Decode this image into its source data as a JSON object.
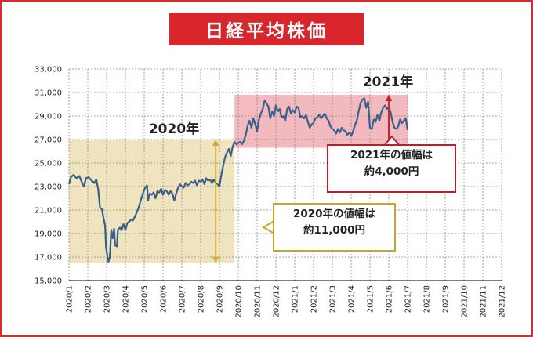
{
  "title": "日経平均株価",
  "chart_data": {
    "type": "line",
    "title": "日経平均株価",
    "ylim": [
      15000,
      33000
    ],
    "yticks": [
      "33,000",
      "31,000",
      "29,000",
      "27,000",
      "25,000",
      "23,000",
      "21,000",
      "19,000",
      "17,000",
      "15,000"
    ],
    "ytick_values": [
      33000,
      31000,
      29000,
      27000,
      25000,
      23000,
      21000,
      19000,
      17000,
      15000
    ],
    "xticks": [
      "2020/1",
      "2020/2",
      "2020/3",
      "2020/4",
      "2020/5",
      "2020/6",
      "2020/7",
      "2020/8",
      "2020/9",
      "2020/10",
      "2020/11",
      "2020/12",
      "2021/1",
      "2021/2",
      "2021/3",
      "2021/4",
      "2021/5",
      "2021/6",
      "2021/7",
      "2021/8",
      "2021/9",
      "2021/10",
      "2021/11",
      "2021/12"
    ],
    "grid": true,
    "line_color": "#3a5f8c",
    "series": [
      {
        "values": [
          [
            0.0,
            23200
          ],
          [
            0.1,
            23800
          ],
          [
            0.25,
            24000
          ],
          [
            0.4,
            23700
          ],
          [
            0.55,
            23900
          ],
          [
            0.7,
            23300
          ],
          [
            0.8,
            23000
          ],
          [
            0.9,
            23700
          ],
          [
            1.05,
            23800
          ],
          [
            1.2,
            23500
          ],
          [
            1.35,
            23300
          ],
          [
            1.45,
            23600
          ],
          [
            1.55,
            22800
          ],
          [
            1.65,
            21200
          ],
          [
            1.75,
            21100
          ],
          [
            1.85,
            20200
          ],
          [
            1.92,
            19700
          ],
          [
            1.97,
            17800
          ],
          [
            2.03,
            17200
          ],
          [
            2.1,
            16600
          ],
          [
            2.17,
            17000
          ],
          [
            2.25,
            19300
          ],
          [
            2.32,
            18600
          ],
          [
            2.4,
            19400
          ],
          [
            2.45,
            18000
          ],
          [
            2.55,
            17900
          ],
          [
            2.6,
            19300
          ],
          [
            2.7,
            19500
          ],
          [
            2.8,
            19300
          ],
          [
            2.9,
            19800
          ],
          [
            3.0,
            19300
          ],
          [
            3.1,
            19900
          ],
          [
            3.2,
            20000
          ],
          [
            3.3,
            20200
          ],
          [
            3.4,
            20100
          ],
          [
            3.55,
            20600
          ],
          [
            3.7,
            21200
          ],
          [
            3.85,
            22000
          ],
          [
            3.95,
            22500
          ],
          [
            4.05,
            22900
          ],
          [
            4.15,
            23100
          ],
          [
            4.2,
            21800
          ],
          [
            4.3,
            22400
          ],
          [
            4.4,
            22300
          ],
          [
            4.5,
            22500
          ],
          [
            4.6,
            22000
          ],
          [
            4.7,
            22600
          ],
          [
            4.8,
            22500
          ],
          [
            4.9,
            22800
          ],
          [
            5.0,
            22300
          ],
          [
            5.1,
            22700
          ],
          [
            5.2,
            22600
          ],
          [
            5.3,
            22300
          ],
          [
            5.4,
            22600
          ],
          [
            5.5,
            22400
          ],
          [
            5.6,
            21800
          ],
          [
            5.7,
            22400
          ],
          [
            5.8,
            22900
          ],
          [
            5.9,
            23200
          ],
          [
            6.0,
            23000
          ],
          [
            6.1,
            22900
          ],
          [
            6.2,
            23300
          ],
          [
            6.3,
            23100
          ],
          [
            6.4,
            23200
          ],
          [
            6.5,
            23400
          ],
          [
            6.6,
            23300
          ],
          [
            6.7,
            23500
          ],
          [
            6.8,
            23100
          ],
          [
            6.9,
            23500
          ],
          [
            7.0,
            23400
          ],
          [
            7.1,
            23600
          ],
          [
            7.2,
            23200
          ],
          [
            7.3,
            23700
          ],
          [
            7.4,
            23500
          ],
          [
            7.5,
            23600
          ],
          [
            7.6,
            23300
          ],
          [
            7.7,
            23600
          ],
          [
            7.8,
            23300
          ],
          [
            7.9,
            23200
          ],
          [
            8.0,
            23000
          ],
          [
            8.1,
            24000
          ],
          [
            8.2,
            24800
          ],
          [
            8.3,
            25500
          ],
          [
            8.4,
            25900
          ],
          [
            8.5,
            26200
          ],
          [
            8.6,
            25600
          ],
          [
            8.7,
            26400
          ],
          [
            8.8,
            26800
          ],
          [
            8.9,
            26600
          ],
          [
            9.0,
            26700
          ],
          [
            9.1,
            26800
          ],
          [
            9.2,
            26600
          ],
          [
            9.3,
            26900
          ],
          [
            9.4,
            27400
          ],
          [
            9.5,
            28200
          ],
          [
            9.6,
            28600
          ],
          [
            9.7,
            28000
          ],
          [
            9.8,
            28800
          ],
          [
            9.9,
            28300
          ],
          [
            10.0,
            27700
          ],
          [
            10.1,
            28700
          ],
          [
            10.2,
            29200
          ],
          [
            10.3,
            29600
          ],
          [
            10.4,
            30300
          ],
          [
            10.5,
            30100
          ],
          [
            10.6,
            29800
          ],
          [
            10.7,
            28800
          ],
          [
            10.8,
            29400
          ],
          [
            10.9,
            29000
          ],
          [
            11.0,
            29900
          ],
          [
            11.1,
            29400
          ],
          [
            11.2,
            29600
          ],
          [
            11.3,
            28900
          ],
          [
            11.4,
            29000
          ],
          [
            11.5,
            28600
          ],
          [
            11.6,
            29600
          ],
          [
            11.7,
            29800
          ],
          [
            11.8,
            29200
          ],
          [
            11.9,
            29500
          ],
          [
            12.0,
            29300
          ],
          [
            12.1,
            29800
          ],
          [
            12.2,
            29700
          ],
          [
            12.3,
            28900
          ],
          [
            12.4,
            29000
          ],
          [
            12.5,
            28800
          ],
          [
            12.6,
            29100
          ],
          [
            12.7,
            28500
          ],
          [
            12.8,
            28000
          ],
          [
            12.9,
            28300
          ],
          [
            13.0,
            28400
          ],
          [
            13.1,
            28800
          ],
          [
            13.2,
            28900
          ],
          [
            13.3,
            29100
          ],
          [
            13.4,
            28800
          ],
          [
            13.5,
            29000
          ],
          [
            13.6,
            29200
          ],
          [
            13.7,
            28800
          ],
          [
            13.8,
            28600
          ],
          [
            13.9,
            28100
          ],
          [
            14.0,
            27900
          ],
          [
            14.1,
            27800
          ],
          [
            14.2,
            27500
          ],
          [
            14.3,
            27900
          ],
          [
            14.4,
            27600
          ],
          [
            14.5,
            28000
          ],
          [
            14.6,
            27800
          ],
          [
            14.7,
            27700
          ],
          [
            14.8,
            27400
          ],
          [
            14.9,
            27600
          ],
          [
            15.0,
            27300
          ],
          [
            15.1,
            27700
          ],
          [
            15.2,
            28200
          ],
          [
            15.3,
            28600
          ],
          [
            15.4,
            29400
          ],
          [
            15.5,
            30100
          ],
          [
            15.6,
            30400
          ],
          [
            15.7,
            30500
          ],
          [
            15.8,
            29700
          ],
          [
            15.9,
            30200
          ],
          [
            16.0,
            28000
          ],
          [
            16.1,
            27900
          ],
          [
            16.2,
            28700
          ],
          [
            16.3,
            28500
          ],
          [
            16.4,
            29100
          ],
          [
            16.5,
            28600
          ],
          [
            16.6,
            29300
          ],
          [
            16.7,
            29700
          ],
          [
            16.8,
            29900
          ],
          [
            16.9,
            29600
          ],
          [
            17.0,
            29800
          ],
          [
            17.1,
            29300
          ],
          [
            17.2,
            28500
          ],
          [
            17.3,
            28000
          ],
          [
            17.4,
            27900
          ],
          [
            17.5,
            28100
          ],
          [
            17.6,
            28700
          ],
          [
            17.7,
            28400
          ],
          [
            17.8,
            28600
          ],
          [
            17.9,
            28800
          ],
          [
            18.0,
            27800
          ]
        ]
      }
    ],
    "annotations": {
      "label_2020": "2020年",
      "label_2021": "2021年",
      "callout_2020_line1": "2020年の値幅は",
      "callout_2020_line2": "約11,000円",
      "callout_2021_line1": "2021年の値幅は",
      "callout_2021_line2": "約4,000円",
      "band_2020": {
        "x": [
          0,
          8.8
        ],
        "y": [
          16500,
          27000
        ],
        "color": "#efe4bd"
      },
      "band_2021": {
        "x": [
          8.8,
          18.0
        ],
        "y": [
          26300,
          30800
        ],
        "color": "#f2b9be"
      },
      "arrow_2020": {
        "x": 7.8,
        "y": [
          16500,
          27000
        ],
        "color": "#d6ad34"
      },
      "arrow_2021": {
        "x": 17.0,
        "y": [
          26300,
          30800
        ],
        "color": "#c9252b"
      }
    }
  }
}
